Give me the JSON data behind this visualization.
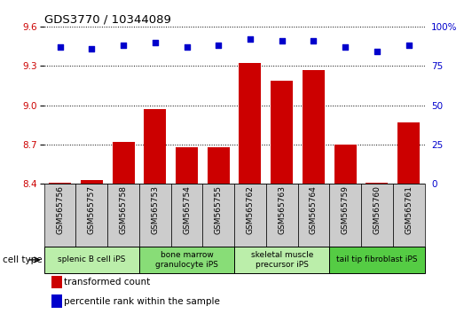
{
  "title": "GDS3770 / 10344089",
  "samples": [
    "GSM565756",
    "GSM565757",
    "GSM565758",
    "GSM565753",
    "GSM565754",
    "GSM565755",
    "GSM565762",
    "GSM565763",
    "GSM565764",
    "GSM565759",
    "GSM565760",
    "GSM565761"
  ],
  "transformed_count": [
    8.41,
    8.43,
    8.72,
    8.97,
    8.68,
    8.68,
    9.32,
    9.19,
    9.27,
    8.7,
    8.41,
    8.87
  ],
  "percentile_rank": [
    87,
    86,
    88,
    90,
    87,
    88,
    92,
    91,
    91,
    87,
    84,
    88
  ],
  "ylim_left": [
    8.4,
    9.6
  ],
  "ylim_right": [
    0,
    100
  ],
  "yticks_left": [
    8.4,
    8.7,
    9.0,
    9.3,
    9.6
  ],
  "yticks_right": [
    0,
    25,
    50,
    75,
    100
  ],
  "bar_color": "#cc0000",
  "dot_color": "#0000cc",
  "cell_type_groups": [
    {
      "label": "splenic B cell iPS",
      "start": 0,
      "end": 3,
      "color": "#bbeeaa"
    },
    {
      "label": "bone marrow\ngranulocyte iPS",
      "start": 3,
      "end": 6,
      "color": "#88dd77"
    },
    {
      "label": "skeletal muscle\nprecursor iPS",
      "start": 6,
      "end": 9,
      "color": "#bbeeaa"
    },
    {
      "label": "tail tip fibroblast iPS",
      "start": 9,
      "end": 12,
      "color": "#55cc44"
    }
  ],
  "cell_type_label": "cell type",
  "legend_bar_label": "transformed count",
  "legend_dot_label": "percentile rank within the sample",
  "grid_color": "#000000",
  "background_color": "#ffffff",
  "plot_bg": "#ffffff",
  "sample_box_color": "#cccccc"
}
